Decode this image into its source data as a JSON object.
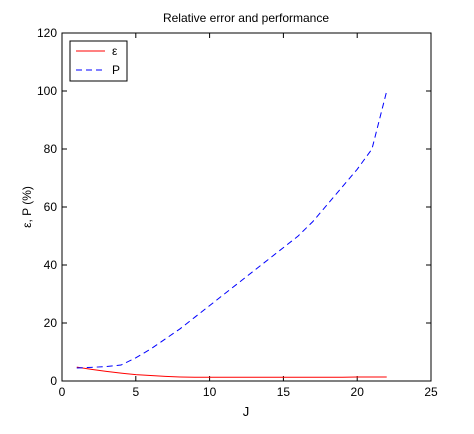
{
  "chart_data": {
    "type": "line",
    "title": "Relative error and performance",
    "xlabel": "J",
    "ylabel": "ε, P  (%)",
    "xlim": [
      0,
      25
    ],
    "ylim": [
      0,
      120
    ],
    "xticks": [
      0,
      5,
      10,
      15,
      20,
      25
    ],
    "yticks": [
      0,
      20,
      40,
      60,
      80,
      100,
      120
    ],
    "grid": false,
    "legend_position": "top-left",
    "series": [
      {
        "name": "ε",
        "color": "#ff0000",
        "style": "solid",
        "x": [
          1,
          2,
          3,
          4,
          5,
          6,
          7,
          8,
          9,
          10,
          11,
          12,
          13,
          14,
          15,
          16,
          17,
          18,
          19,
          20,
          21,
          22
        ],
        "y": [
          4.8,
          4.0,
          3.3,
          2.7,
          2.2,
          1.9,
          1.6,
          1.4,
          1.3,
          1.3,
          1.3,
          1.3,
          1.3,
          1.3,
          1.3,
          1.3,
          1.3,
          1.3,
          1.3,
          1.4,
          1.4,
          1.4
        ]
      },
      {
        "name": "P",
        "color": "#0000ff",
        "style": "dashed",
        "x": [
          1,
          2,
          3,
          4,
          5,
          6,
          7,
          8,
          9,
          10,
          11,
          12,
          13,
          14,
          15,
          16,
          17,
          18,
          19,
          20,
          21,
          22
        ],
        "y": [
          4.5,
          4.7,
          5.0,
          5.5,
          8.0,
          11.0,
          14.5,
          18.0,
          22.0,
          26.0,
          30.0,
          34.0,
          38.0,
          42.0,
          46.0,
          50.0,
          55.0,
          61.0,
          67.0,
          73.0,
          80.0,
          100.0
        ]
      }
    ]
  }
}
